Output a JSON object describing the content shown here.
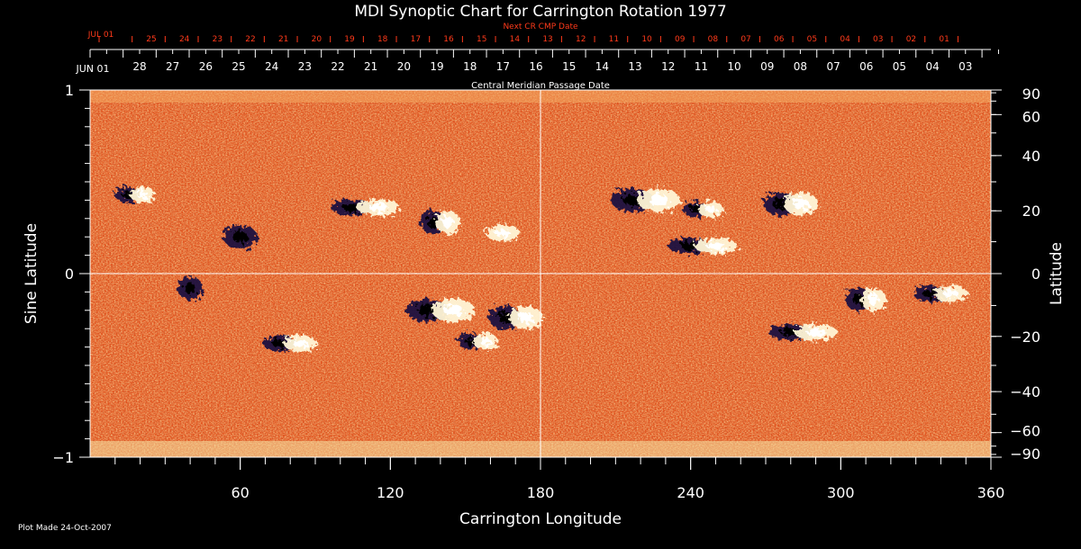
{
  "chart_data": {
    "type": "heatmap",
    "title": "MDI Synoptic Chart for Carrington Rotation 1977",
    "xlabel": "Carrington Longitude",
    "ylabel_left": "Sine Latitude",
    "ylabel_right": "Latitude",
    "xlim": [
      0,
      360
    ],
    "ylim": [
      -1,
      1
    ],
    "x_ticks": [
      "60",
      "120",
      "180",
      "240",
      "300",
      "360"
    ],
    "x_tick_values": [
      60,
      120,
      180,
      240,
      300,
      360
    ],
    "y_left_ticks": [
      "1",
      "0",
      "−1"
    ],
    "y_left_values": [
      1,
      0,
      -1
    ],
    "y_right_ticks": [
      "90",
      "60",
      "40",
      "20",
      "0",
      "−20",
      "−40",
      "−60",
      "−90"
    ],
    "y_right_values": [
      90,
      60,
      40,
      20,
      0,
      -20,
      -40,
      -60,
      -90
    ],
    "top_axis_label": "Central Meridian Passage Date",
    "top_axis_start": "JUN 01",
    "top_axis_dates": [
      "28",
      "27",
      "26",
      "25",
      "24",
      "23",
      "22",
      "21",
      "20",
      "19",
      "18",
      "17",
      "16",
      "15",
      "14",
      "13",
      "12",
      "11",
      "10",
      "09",
      "08",
      "07",
      "06",
      "05",
      "04",
      "03"
    ],
    "next_cr_label": "Next CR CMP Date",
    "next_cr_start": "JUL 01",
    "next_cr_dates": [
      "25",
      "24",
      "23",
      "22",
      "21",
      "20",
      "19",
      "18",
      "17",
      "16",
      "15",
      "14",
      "13",
      "12",
      "11",
      "10",
      "09",
      "08",
      "07",
      "06",
      "05",
      "04",
      "03",
      "02",
      "01"
    ],
    "grid_lines": [
      "longitude 180",
      "sine latitude 0"
    ],
    "colormap": {
      "background": "#e8531a",
      "positive": "#fff8e0",
      "negative": "#1a0f3a"
    },
    "active_regions": [
      {
        "lon": 18,
        "sinlat": 0.43,
        "polarity": "mixed"
      },
      {
        "lon": 60,
        "sinlat": 0.2,
        "polarity": "negative"
      },
      {
        "lon": 110,
        "sinlat": 0.36,
        "polarity": "mixed"
      },
      {
        "lon": 140,
        "sinlat": 0.28,
        "polarity": "mixed"
      },
      {
        "lon": 165,
        "sinlat": 0.22,
        "polarity": "positive"
      },
      {
        "lon": 222,
        "sinlat": 0.4,
        "polarity": "mixed"
      },
      {
        "lon": 245,
        "sinlat": 0.35,
        "polarity": "mixed"
      },
      {
        "lon": 280,
        "sinlat": 0.38,
        "polarity": "mixed"
      },
      {
        "lon": 245,
        "sinlat": 0.15,
        "polarity": "mixed"
      },
      {
        "lon": 40,
        "sinlat": -0.08,
        "polarity": "negative"
      },
      {
        "lon": 80,
        "sinlat": -0.38,
        "polarity": "mixed"
      },
      {
        "lon": 140,
        "sinlat": -0.2,
        "polarity": "mixed"
      },
      {
        "lon": 155,
        "sinlat": -0.37,
        "polarity": "mixed"
      },
      {
        "lon": 170,
        "sinlat": -0.24,
        "polarity": "mixed"
      },
      {
        "lon": 285,
        "sinlat": -0.32,
        "polarity": "mixed"
      },
      {
        "lon": 310,
        "sinlat": -0.14,
        "polarity": "mixed"
      },
      {
        "lon": 340,
        "sinlat": -0.11,
        "polarity": "mixed"
      }
    ]
  },
  "footer": {
    "plot_made": "Plot Made 24-Oct-2007"
  }
}
